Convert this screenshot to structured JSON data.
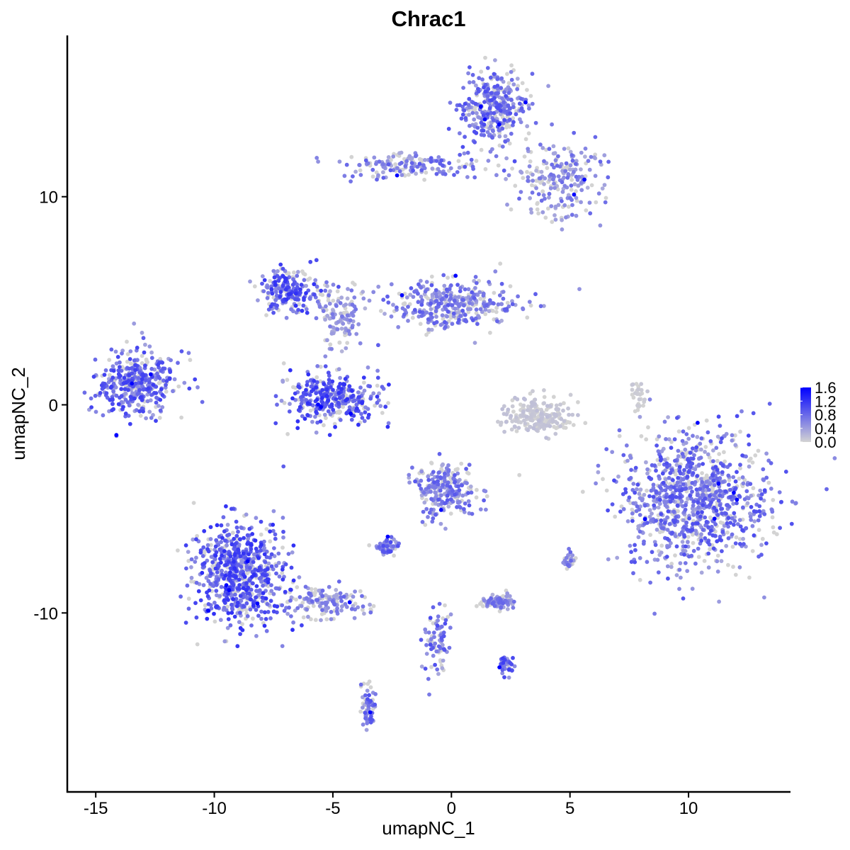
{
  "chart_data": {
    "type": "scatter",
    "title": "Chrac1",
    "xlabel": "umapNC_1",
    "ylabel": "umapNC_2",
    "xlim": [
      -16.2,
      14.3
    ],
    "ylim": [
      -18.6,
      17.75
    ],
    "xticks": [
      -15,
      -10,
      -5,
      0,
      5,
      10
    ],
    "xtick_labels": [
      "-15",
      "-10",
      "-5",
      "0",
      "5",
      "10"
    ],
    "yticks": [
      -10,
      0,
      10
    ],
    "ytick_labels": [
      "-10",
      "0",
      "10"
    ],
    "grid": false,
    "legend": {
      "placement": "right",
      "type": "colorbar",
      "min": 0.0,
      "max": 1.6,
      "labels": [
        "1.6",
        "1.2",
        "0.8",
        "0.4",
        "0.0"
      ],
      "low_color": "#D3D3D3",
      "high_color": "#0000FF"
    },
    "clusters": [
      {
        "x": -13.2,
        "y": 1.05,
        "sx": 0.9,
        "sy": 0.75,
        "n": 400,
        "expr": 0.55
      },
      {
        "x": 1.8,
        "y": 14.2,
        "sx": 0.65,
        "sy": 0.9,
        "n": 350,
        "expr": 0.5
      },
      {
        "x": 4.6,
        "y": 10.8,
        "sx": 0.9,
        "sy": 0.9,
        "n": 220,
        "expr": 0.4
      },
      {
        "x": -1.7,
        "y": 11.5,
        "sx": 1.5,
        "sy": 0.35,
        "n": 160,
        "expr": 0.45
      },
      {
        "x": -6.9,
        "y": 5.5,
        "sx": 0.6,
        "sy": 0.5,
        "n": 200,
        "expr": 0.6
      },
      {
        "x": -4.7,
        "y": 4.3,
        "sx": 0.5,
        "sy": 0.8,
        "n": 120,
        "expr": 0.35
      },
      {
        "x": 0.1,
        "y": 4.8,
        "sx": 1.4,
        "sy": 0.6,
        "n": 350,
        "expr": 0.45
      },
      {
        "x": -5.0,
        "y": 0.3,
        "sx": 1.0,
        "sy": 0.6,
        "n": 350,
        "expr": 0.6
      },
      {
        "x": 3.6,
        "y": -0.5,
        "sx": 0.7,
        "sy": 0.45,
        "n": 220,
        "expr": 0.08
      },
      {
        "x": 10.3,
        "y": -4.6,
        "sx": 1.55,
        "sy": 1.6,
        "n": 1000,
        "expr": 0.5
      },
      {
        "x": -8.9,
        "y": -8.1,
        "sx": 0.95,
        "sy": 1.2,
        "n": 700,
        "expr": 0.6
      },
      {
        "x": -5.3,
        "y": -9.5,
        "sx": 0.9,
        "sy": 0.4,
        "n": 150,
        "expr": 0.4
      },
      {
        "x": -0.2,
        "y": -4.1,
        "sx": 0.6,
        "sy": 0.7,
        "n": 250,
        "expr": 0.45
      },
      {
        "x": 2.0,
        "y": -9.5,
        "sx": 0.35,
        "sy": 0.15,
        "n": 100,
        "expr": 0.4
      },
      {
        "x": -0.6,
        "y": -11.2,
        "sx": 0.3,
        "sy": 0.8,
        "n": 80,
        "expr": 0.5
      },
      {
        "x": -3.5,
        "y": -14.5,
        "sx": 0.15,
        "sy": 0.5,
        "n": 60,
        "expr": 0.5
      },
      {
        "x": -2.7,
        "y": -6.8,
        "sx": 0.25,
        "sy": 0.2,
        "n": 50,
        "expr": 0.5
      },
      {
        "x": 2.3,
        "y": -12.5,
        "sx": 0.2,
        "sy": 0.2,
        "n": 40,
        "expr": 0.55
      },
      {
        "x": 7.9,
        "y": 0.3,
        "sx": 0.15,
        "sy": 0.4,
        "n": 30,
        "expr": 0.05
      },
      {
        "x": 5.0,
        "y": -7.4,
        "sx": 0.15,
        "sy": 0.2,
        "n": 30,
        "expr": 0.4
      }
    ]
  }
}
